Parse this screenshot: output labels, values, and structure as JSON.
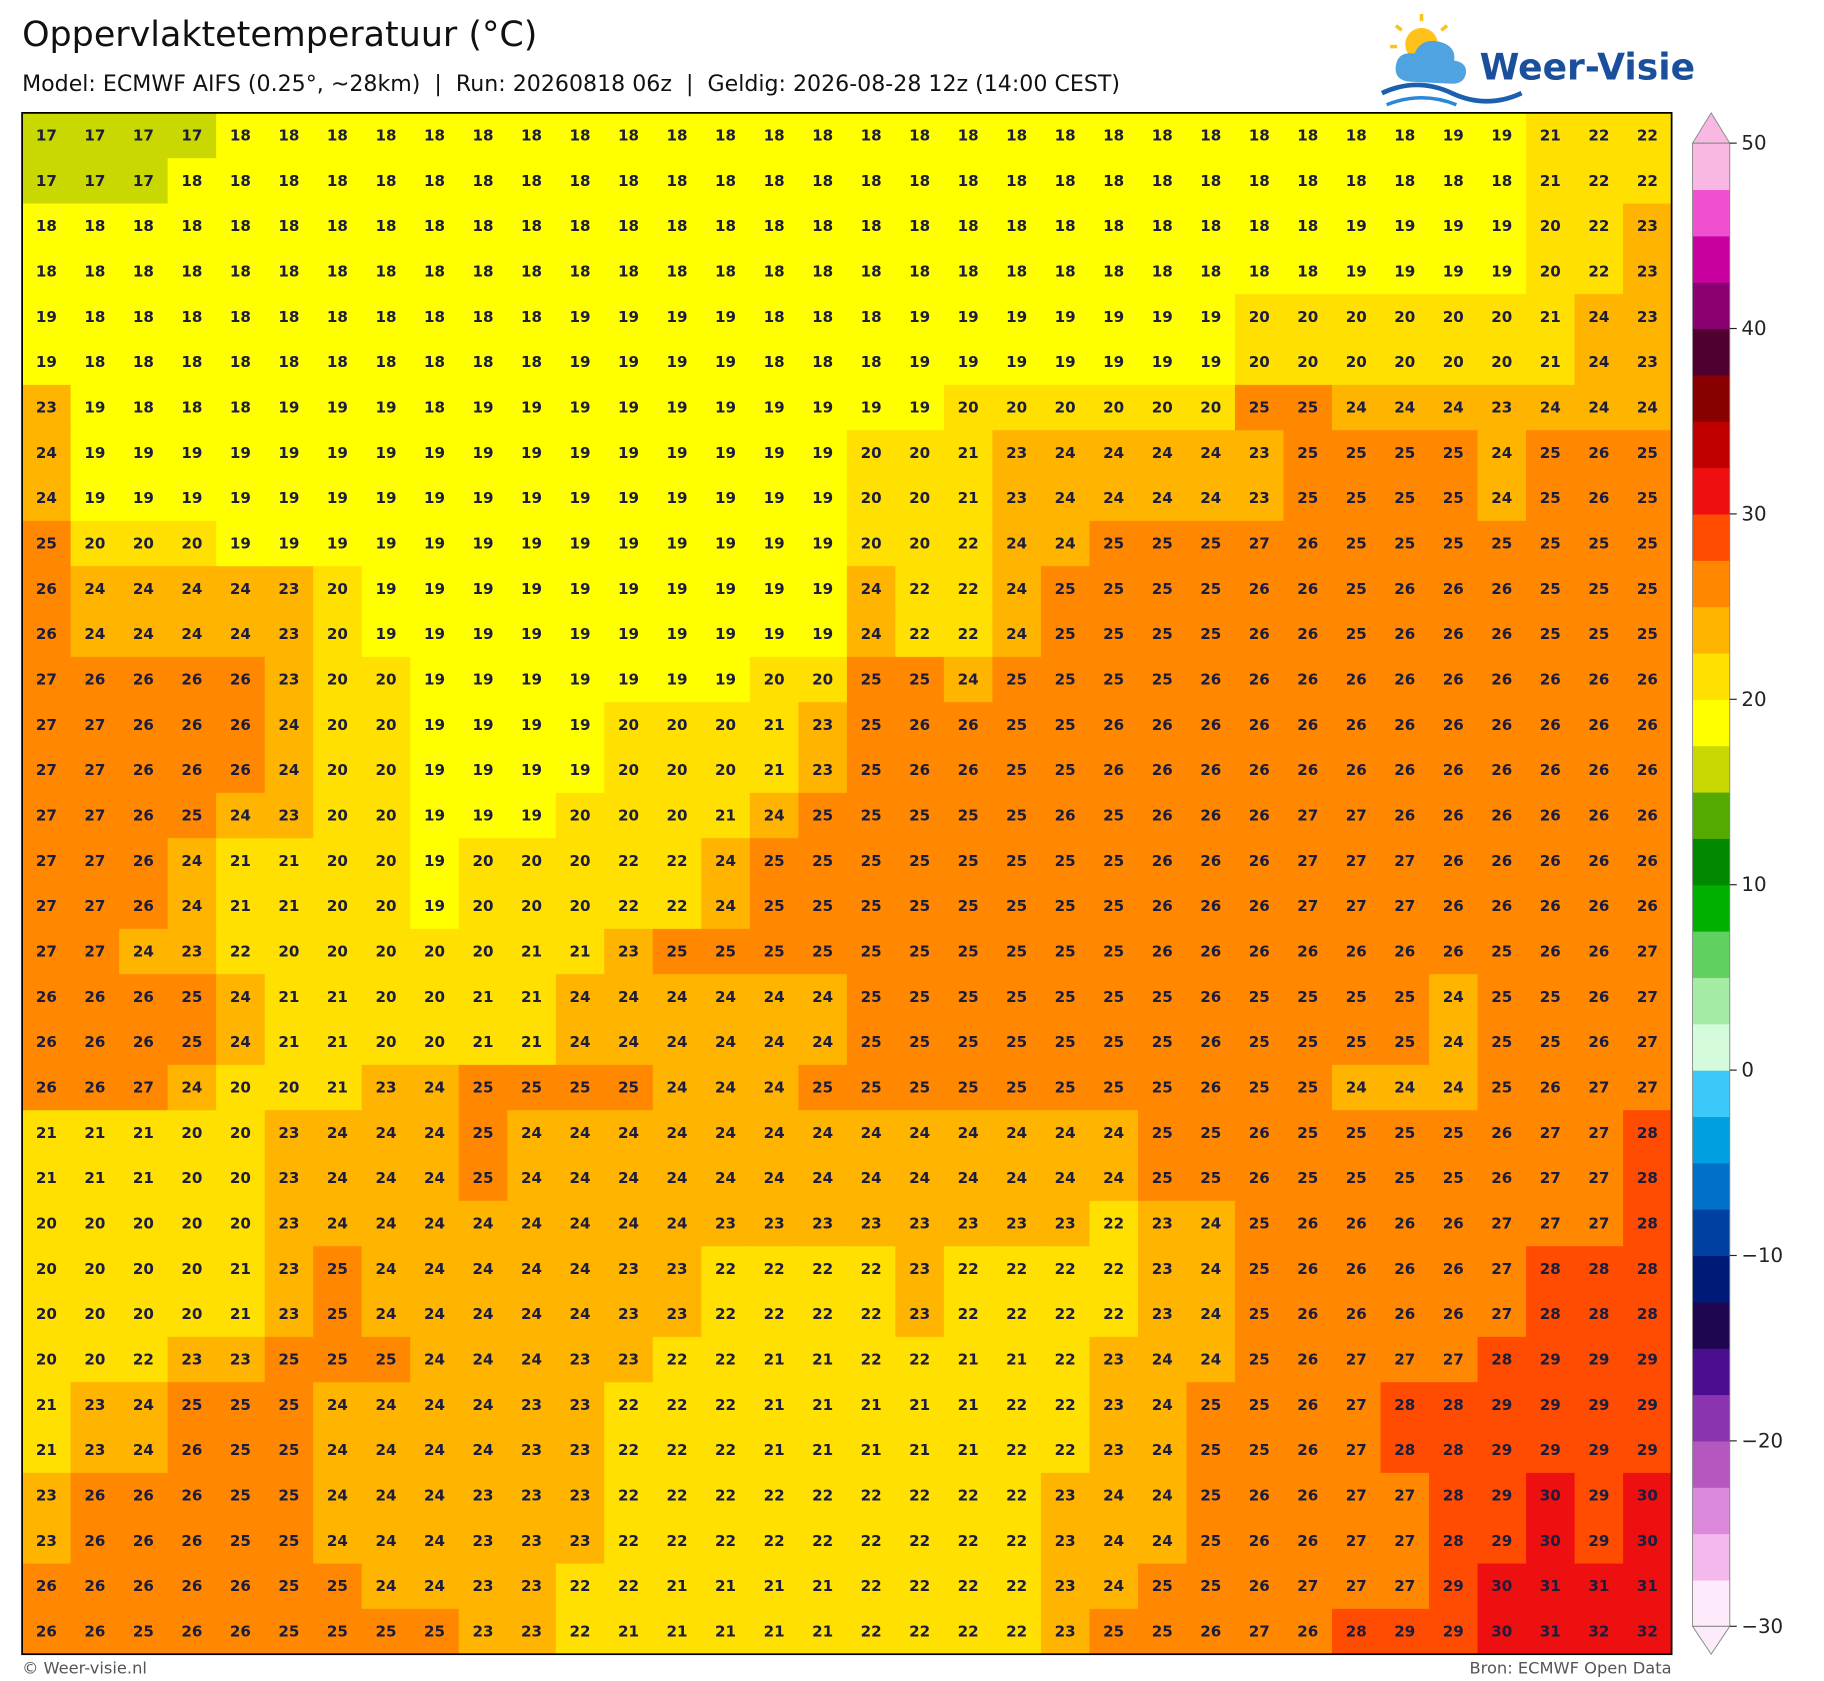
{
  "title": "Oppervlaktetemperatuur (°C)",
  "subtitle": "Model: ECMWF AIFS (0.25°, ~28km)  |  Run: 20260818 06z  |  Geldig: 2026-08-28 12z (14:00 CEST)",
  "logo": "Weer-Visie",
  "footer_left": "© Weer-visie.nl",
  "footer_right": "Bron: ECMWF Open Data",
  "grid": [
    [
      17,
      17,
      17,
      17,
      18,
      18,
      18,
      18,
      18,
      18,
      18,
      18,
      18,
      18,
      18,
      18,
      18,
      18,
      18,
      18,
      18,
      18,
      18,
      18,
      18,
      18,
      18,
      18,
      18,
      19,
      19,
      21,
      22,
      22
    ],
    [
      17,
      17,
      17,
      18,
      18,
      18,
      18,
      18,
      18,
      18,
      18,
      18,
      18,
      18,
      18,
      18,
      18,
      18,
      18,
      18,
      18,
      18,
      18,
      18,
      18,
      18,
      18,
      18,
      18,
      18,
      18,
      21,
      22,
      22
    ],
    [
      18,
      18,
      18,
      18,
      18,
      18,
      18,
      18,
      18,
      18,
      18,
      18,
      18,
      18,
      18,
      18,
      18,
      18,
      18,
      18,
      18,
      18,
      18,
      18,
      18,
      18,
      18,
      19,
      19,
      19,
      19,
      20,
      22,
      23
    ],
    [
      18,
      18,
      18,
      18,
      18,
      18,
      18,
      18,
      18,
      18,
      18,
      18,
      18,
      18,
      18,
      18,
      18,
      18,
      18,
      18,
      18,
      18,
      18,
      18,
      18,
      18,
      18,
      19,
      19,
      19,
      19,
      20,
      22,
      23
    ],
    [
      19,
      18,
      18,
      18,
      18,
      18,
      18,
      18,
      18,
      18,
      18,
      19,
      19,
      19,
      19,
      18,
      18,
      18,
      19,
      19,
      19,
      19,
      19,
      19,
      19,
      20,
      20,
      20,
      20,
      20,
      20,
      21,
      24,
      23
    ],
    [
      19,
      18,
      18,
      18,
      18,
      18,
      18,
      18,
      18,
      18,
      18,
      19,
      19,
      19,
      19,
      18,
      18,
      18,
      19,
      19,
      19,
      19,
      19,
      19,
      19,
      20,
      20,
      20,
      20,
      20,
      20,
      21,
      24,
      23
    ],
    [
      23,
      19,
      18,
      18,
      18,
      19,
      19,
      19,
      18,
      19,
      19,
      19,
      19,
      19,
      19,
      19,
      19,
      19,
      19,
      20,
      20,
      20,
      20,
      20,
      20,
      25,
      25,
      24,
      24,
      24,
      23,
      24,
      24,
      24
    ],
    [
      24,
      19,
      19,
      19,
      19,
      19,
      19,
      19,
      19,
      19,
      19,
      19,
      19,
      19,
      19,
      19,
      19,
      20,
      20,
      21,
      23,
      24,
      24,
      24,
      24,
      23,
      25,
      25,
      25,
      25,
      24,
      25,
      26,
      25
    ],
    [
      24,
      19,
      19,
      19,
      19,
      19,
      19,
      19,
      19,
      19,
      19,
      19,
      19,
      19,
      19,
      19,
      19,
      20,
      20,
      21,
      23,
      24,
      24,
      24,
      24,
      23,
      25,
      25,
      25,
      25,
      24,
      25,
      26,
      25
    ],
    [
      25,
      20,
      20,
      20,
      19,
      19,
      19,
      19,
      19,
      19,
      19,
      19,
      19,
      19,
      19,
      19,
      19,
      20,
      20,
      22,
      24,
      24,
      25,
      25,
      25,
      27,
      26,
      25,
      25,
      25,
      25,
      25,
      25,
      25
    ],
    [
      26,
      24,
      24,
      24,
      24,
      23,
      20,
      19,
      19,
      19,
      19,
      19,
      19,
      19,
      19,
      19,
      19,
      24,
      22,
      22,
      24,
      25,
      25,
      25,
      25,
      26,
      26,
      25,
      26,
      26,
      26,
      25,
      25,
      25
    ],
    [
      26,
      24,
      24,
      24,
      24,
      23,
      20,
      19,
      19,
      19,
      19,
      19,
      19,
      19,
      19,
      19,
      19,
      24,
      22,
      22,
      24,
      25,
      25,
      25,
      25,
      26,
      26,
      25,
      26,
      26,
      26,
      25,
      25,
      25
    ],
    [
      27,
      26,
      26,
      26,
      26,
      23,
      20,
      20,
      19,
      19,
      19,
      19,
      19,
      19,
      19,
      20,
      20,
      25,
      25,
      24,
      25,
      25,
      25,
      25,
      26,
      26,
      26,
      26,
      26,
      26,
      26,
      26,
      26,
      26
    ],
    [
      27,
      27,
      26,
      26,
      26,
      24,
      20,
      20,
      19,
      19,
      19,
      19,
      20,
      20,
      20,
      21,
      23,
      25,
      26,
      26,
      25,
      25,
      26,
      26,
      26,
      26,
      26,
      26,
      26,
      26,
      26,
      26,
      26,
      26
    ],
    [
      27,
      27,
      26,
      26,
      26,
      24,
      20,
      20,
      19,
      19,
      19,
      19,
      20,
      20,
      20,
      21,
      23,
      25,
      26,
      26,
      25,
      25,
      26,
      26,
      26,
      26,
      26,
      26,
      26,
      26,
      26,
      26,
      26,
      26
    ],
    [
      27,
      27,
      26,
      25,
      24,
      23,
      20,
      20,
      19,
      19,
      19,
      20,
      20,
      20,
      21,
      24,
      25,
      25,
      25,
      25,
      25,
      26,
      25,
      26,
      26,
      26,
      27,
      27,
      26,
      26,
      26,
      26,
      26,
      26
    ],
    [
      27,
      27,
      26,
      24,
      21,
      21,
      20,
      20,
      19,
      20,
      20,
      20,
      22,
      22,
      24,
      25,
      25,
      25,
      25,
      25,
      25,
      25,
      25,
      26,
      26,
      26,
      27,
      27,
      27,
      26,
      26,
      26,
      26,
      26
    ],
    [
      27,
      27,
      26,
      24,
      21,
      21,
      20,
      20,
      19,
      20,
      20,
      20,
      22,
      22,
      24,
      25,
      25,
      25,
      25,
      25,
      25,
      25,
      25,
      26,
      26,
      26,
      27,
      27,
      27,
      26,
      26,
      26,
      26,
      26
    ],
    [
      27,
      27,
      24,
      23,
      22,
      20,
      20,
      20,
      20,
      20,
      21,
      21,
      23,
      25,
      25,
      25,
      25,
      25,
      25,
      25,
      25,
      25,
      25,
      26,
      26,
      26,
      26,
      26,
      26,
      26,
      25,
      26,
      26,
      27
    ],
    [
      26,
      26,
      26,
      25,
      24,
      21,
      21,
      20,
      20,
      21,
      21,
      24,
      24,
      24,
      24,
      24,
      24,
      25,
      25,
      25,
      25,
      25,
      25,
      25,
      26,
      25,
      25,
      25,
      25,
      24,
      25,
      25,
      26,
      27
    ],
    [
      26,
      26,
      26,
      25,
      24,
      21,
      21,
      20,
      20,
      21,
      21,
      24,
      24,
      24,
      24,
      24,
      24,
      25,
      25,
      25,
      25,
      25,
      25,
      25,
      26,
      25,
      25,
      25,
      25,
      24,
      25,
      25,
      26,
      27
    ],
    [
      26,
      26,
      27,
      24,
      20,
      20,
      21,
      23,
      24,
      25,
      25,
      25,
      25,
      24,
      24,
      24,
      25,
      25,
      25,
      25,
      25,
      25,
      25,
      25,
      26,
      25,
      25,
      24,
      24,
      24,
      25,
      26,
      27,
      27
    ],
    [
      21,
      21,
      21,
      20,
      20,
      23,
      24,
      24,
      24,
      25,
      24,
      24,
      24,
      24,
      24,
      24,
      24,
      24,
      24,
      24,
      24,
      24,
      24,
      25,
      25,
      26,
      25,
      25,
      25,
      25,
      26,
      27,
      27,
      28
    ],
    [
      21,
      21,
      21,
      20,
      20,
      23,
      24,
      24,
      24,
      25,
      24,
      24,
      24,
      24,
      24,
      24,
      24,
      24,
      24,
      24,
      24,
      24,
      24,
      25,
      25,
      26,
      25,
      25,
      25,
      25,
      26,
      27,
      27,
      28
    ],
    [
      20,
      20,
      20,
      20,
      20,
      23,
      24,
      24,
      24,
      24,
      24,
      24,
      24,
      24,
      23,
      23,
      23,
      23,
      23,
      23,
      23,
      23,
      22,
      23,
      24,
      25,
      26,
      26,
      26,
      26,
      27,
      27,
      27,
      28
    ],
    [
      20,
      20,
      20,
      20,
      21,
      23,
      25,
      24,
      24,
      24,
      24,
      24,
      23,
      23,
      22,
      22,
      22,
      22,
      23,
      22,
      22,
      22,
      22,
      23,
      24,
      25,
      26,
      26,
      26,
      26,
      27,
      28,
      28,
      28
    ],
    [
      20,
      20,
      20,
      20,
      21,
      23,
      25,
      24,
      24,
      24,
      24,
      24,
      23,
      23,
      22,
      22,
      22,
      22,
      23,
      22,
      22,
      22,
      22,
      23,
      24,
      25,
      26,
      26,
      26,
      26,
      27,
      28,
      28,
      28
    ],
    [
      20,
      20,
      22,
      23,
      23,
      25,
      25,
      25,
      24,
      24,
      24,
      23,
      23,
      22,
      22,
      21,
      21,
      22,
      22,
      21,
      21,
      22,
      23,
      24,
      24,
      25,
      26,
      27,
      27,
      27,
      28,
      29,
      29,
      29
    ],
    [
      21,
      23,
      24,
      25,
      25,
      25,
      24,
      24,
      24,
      24,
      23,
      23,
      22,
      22,
      22,
      21,
      21,
      21,
      21,
      21,
      22,
      22,
      23,
      24,
      25,
      25,
      26,
      27,
      28,
      28,
      29,
      29,
      29,
      29
    ],
    [
      21,
      23,
      24,
      26,
      25,
      25,
      24,
      24,
      24,
      24,
      23,
      23,
      22,
      22,
      22,
      21,
      21,
      21,
      21,
      21,
      22,
      22,
      23,
      24,
      25,
      25,
      26,
      27,
      28,
      28,
      29,
      29,
      29,
      29
    ],
    [
      23,
      26,
      26,
      26,
      25,
      25,
      24,
      24,
      24,
      23,
      23,
      23,
      22,
      22,
      22,
      22,
      22,
      22,
      22,
      22,
      22,
      23,
      24,
      24,
      25,
      26,
      26,
      27,
      27,
      28,
      29,
      30,
      29,
      30
    ],
    [
      23,
      26,
      26,
      26,
      25,
      25,
      24,
      24,
      24,
      23,
      23,
      23,
      22,
      22,
      22,
      22,
      22,
      22,
      22,
      22,
      22,
      23,
      24,
      24,
      25,
      26,
      26,
      27,
      27,
      28,
      29,
      30,
      29,
      30
    ],
    [
      26,
      26,
      26,
      26,
      26,
      25,
      25,
      24,
      24,
      23,
      23,
      22,
      22,
      21,
      21,
      21,
      21,
      22,
      22,
      22,
      22,
      23,
      24,
      25,
      25,
      26,
      27,
      27,
      27,
      29,
      30,
      31,
      31,
      31
    ],
    [
      26,
      26,
      25,
      26,
      26,
      25,
      25,
      25,
      25,
      23,
      23,
      22,
      21,
      21,
      21,
      21,
      21,
      22,
      22,
      22,
      22,
      23,
      25,
      25,
      26,
      27,
      26,
      28,
      29,
      29,
      30,
      31,
      32,
      32
    ]
  ],
  "colorbar": {
    "lim": [
      -30,
      50
    ],
    "ticks": [
      50,
      40,
      30,
      20,
      10,
      0,
      {
        "value": -10,
        "label": "−10"
      },
      {
        "value": -20,
        "label": "−20"
      },
      {
        "value": -30,
        "label": "−30"
      }
    ],
    "colors": [
      "#fdeafa",
      "#f4b8ec",
      "#dc88dc",
      "#b458c0",
      "#8a34b0",
      "#4c0e90",
      "#1e0650",
      "#001a78",
      "#0040a0",
      "#0070c8",
      "#00a0e0",
      "#3cc8f8",
      "#d4fcdc",
      "#a4eca4",
      "#60d060",
      "#00b000",
      "#008800",
      "#54aa00",
      "#c8d800",
      "#ffff00",
      "#ffe000",
      "#ffb400",
      "#ff8800",
      "#ff4c00",
      "#ee1010",
      "#c00000",
      "#880000",
      "#500030",
      "#8a0070",
      "#c800a0",
      "#f050d0",
      "#f8b8e2"
    ]
  }
}
